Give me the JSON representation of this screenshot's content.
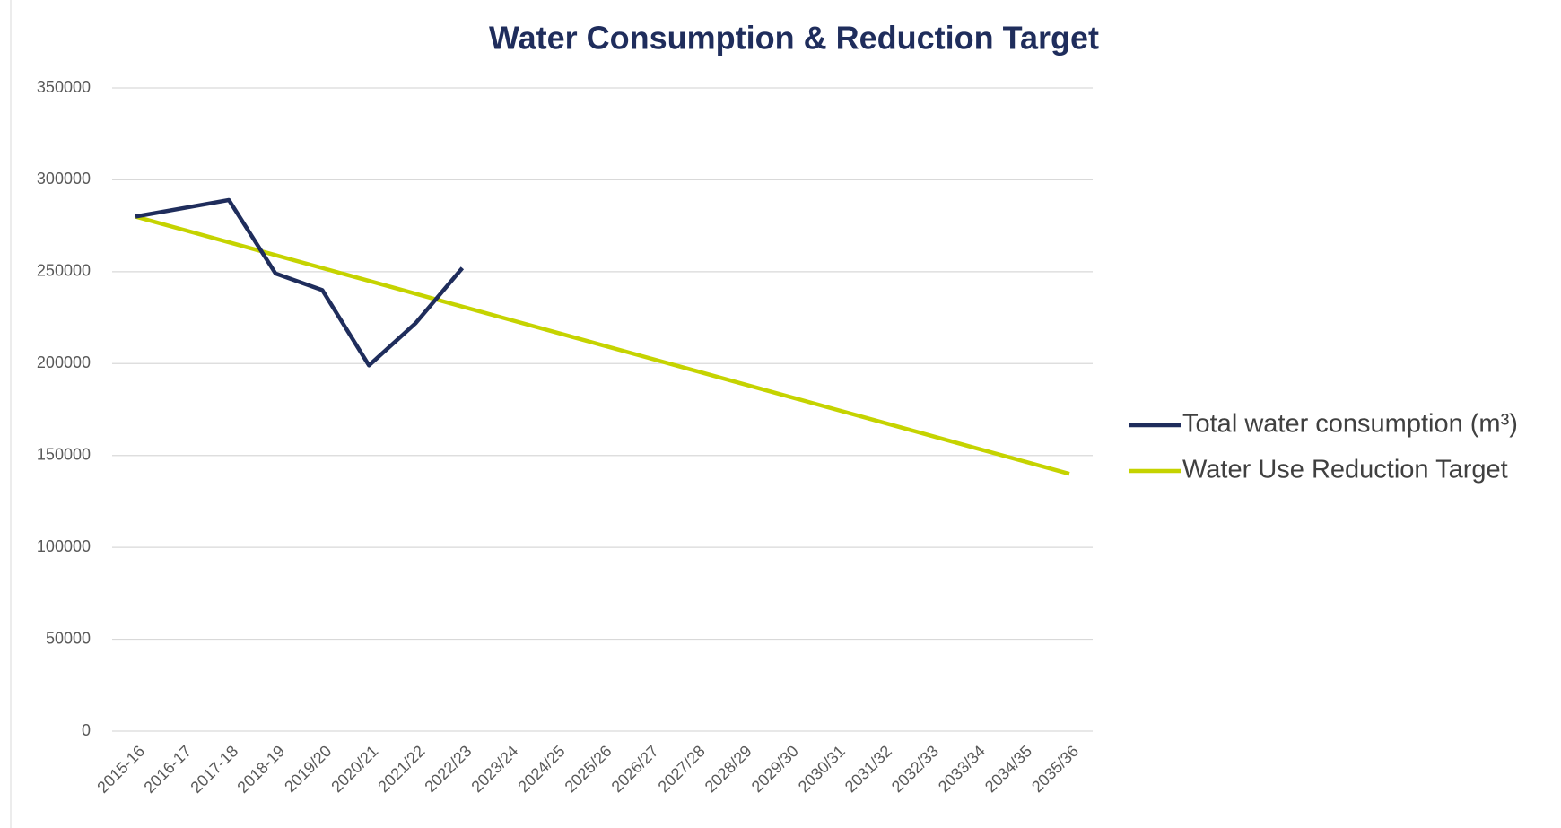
{
  "chart_data": {
    "type": "line",
    "title": "Water Consumption & Reduction Target",
    "categories": [
      "2015-16",
      "2016-17",
      "2017-18",
      "2018-19",
      "2019/20",
      "2020/21",
      "2021/22",
      "2022/23",
      "2023/24",
      "2024/25",
      "2025/26",
      "2026/27",
      "2027/28",
      "2028/29",
      "2029/30",
      "2030/31",
      "2031/32",
      "2032/33",
      "2033/34",
      "2034/35",
      "2035/36"
    ],
    "series": [
      {
        "name": "Total water consumption (m³)",
        "color": "#1f2d5c",
        "values": [
          280000,
          284500,
          289000,
          249000,
          240000,
          199000,
          222000,
          252000,
          null,
          null,
          null,
          null,
          null,
          null,
          null,
          null,
          null,
          null,
          null,
          null,
          null
        ]
      },
      {
        "name": "Water Use Reduction Target",
        "color": "#c5d300",
        "values": [
          280000,
          273000,
          266000,
          259000,
          252000,
          245000,
          238000,
          231000,
          224000,
          217000,
          210000,
          203000,
          196000,
          189000,
          182000,
          175000,
          168000,
          161000,
          154000,
          147000,
          140000
        ]
      }
    ],
    "ylim": [
      0,
      350000
    ],
    "yticks": [
      0,
      50000,
      100000,
      150000,
      200000,
      250000,
      300000,
      350000
    ],
    "grid": true,
    "legend": "right"
  }
}
